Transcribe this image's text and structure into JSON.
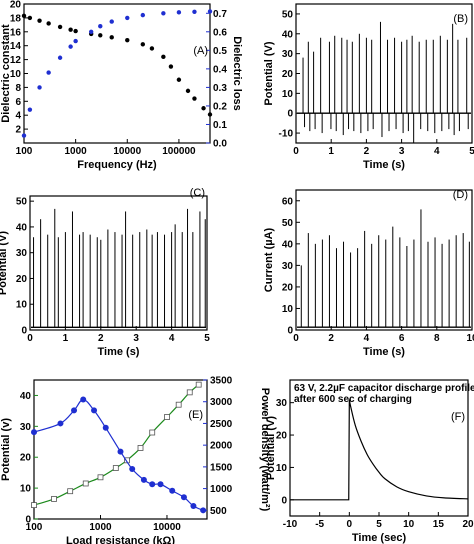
{
  "panels": {
    "A": {
      "label": "(A)",
      "xlabel": "Frequency (Hz)",
      "ylabel_left": "Dielectric constant",
      "ylabel_right": "Dielectric loss",
      "xticks": [
        "100",
        "1000",
        "10000",
        "100000"
      ],
      "yticks_left": [
        "2",
        "4",
        "6",
        "8",
        "10",
        "12",
        "14",
        "16",
        "18",
        "20"
      ],
      "yticks_right": [
        "0.0",
        "0.1",
        "0.2",
        "0.3",
        "0.4",
        "0.5",
        "0.6",
        "0.7"
      ]
    },
    "B": {
      "label": "(B)",
      "xlabel": "Time (s)",
      "ylabel": "Potential (V)",
      "xticks": [
        "0",
        "1",
        "2",
        "3",
        "4",
        "5"
      ],
      "yticks": [
        "-10",
        "0",
        "10",
        "20",
        "30",
        "40",
        "50"
      ]
    },
    "C": {
      "label": "(C)",
      "xlabel": "Time (s)",
      "ylabel": "Potential (V)",
      "xticks": [
        "0",
        "1",
        "2",
        "3",
        "4",
        "5"
      ],
      "yticks": [
        "0",
        "10",
        "20",
        "30",
        "40",
        "50"
      ]
    },
    "D": {
      "label": "(D)",
      "xlabel": "Time (s)",
      "ylabel": "Current (µA)",
      "xticks": [
        "0",
        "2",
        "4",
        "6",
        "8",
        "10"
      ],
      "yticks": [
        "0",
        "10",
        "20",
        "30",
        "40",
        "50",
        "60"
      ]
    },
    "E": {
      "label": "(E)",
      "xlabel": "Load resistance (kΩ)",
      "ylabel_left": "Potential (v)",
      "ylabel_right": "Power density (watt/m²)",
      "xticks": [
        "100",
        "1000",
        "10000"
      ],
      "yticks_left": [
        "0",
        "10",
        "20",
        "30",
        "40"
      ],
      "yticks_right": [
        "500",
        "1000",
        "1500",
        "2000",
        "2500",
        "3000",
        "3500"
      ]
    },
    "F": {
      "label": "(F)",
      "xlabel": "Time (sec)",
      "ylabel": "Potential (V)",
      "annotation_line1": "63 V, 2.2µF capacitor discharge profile",
      "annotation_line2": "after 600 sec of charging",
      "xticks": [
        "-10",
        "-5",
        "0",
        "5",
        "10",
        "15",
        "20"
      ],
      "yticks": [
        "0",
        "10",
        "20",
        "30"
      ]
    }
  },
  "colors": {
    "black": "#000000",
    "blue": "#1f2fd1",
    "green": "#1c8a1c"
  },
  "chart_data": [
    {
      "panel": "A",
      "type": "scatter",
      "x_scale": "log",
      "xlim": [
        100,
        400000
      ],
      "series": [
        {
          "axis": "left",
          "color": "#000000",
          "ylim": [
            0,
            20
          ],
          "x": [
            100,
            130,
            200,
            300,
            500,
            800,
            1000,
            2000,
            3000,
            5000,
            10000,
            20000,
            30000,
            50000,
            70000,
            100000,
            150000,
            200000,
            300000,
            400000
          ],
          "y": [
            18.3,
            18.0,
            17.6,
            17.2,
            16.7,
            16.3,
            16.1,
            15.7,
            15.5,
            15.2,
            14.8,
            14.2,
            13.6,
            12.4,
            11.0,
            9.1,
            7.5,
            6.4,
            5.0,
            4.1
          ]
        },
        {
          "axis": "right",
          "color": "#1f2fd1",
          "ylim": [
            0,
            0.75
          ],
          "x": [
            100,
            130,
            200,
            300,
            500,
            800,
            1000,
            2000,
            3000,
            5000,
            10000,
            20000,
            50000,
            100000,
            200000,
            400000
          ],
          "y": [
            0.04,
            0.18,
            0.3,
            0.38,
            0.46,
            0.52,
            0.55,
            0.6,
            0.63,
            0.655,
            0.675,
            0.69,
            0.7,
            0.705,
            0.708,
            0.71
          ]
        }
      ]
    },
    {
      "panel": "B",
      "type": "line",
      "xlim": [
        0,
        5
      ],
      "ylim": [
        -15,
        55
      ],
      "spike_times": [
        0.2,
        0.35,
        0.5,
        0.7,
        0.95,
        1.1,
        1.3,
        1.45,
        1.6,
        1.8,
        2.0,
        2.15,
        2.4,
        2.6,
        2.8,
        3.0,
        3.15,
        3.3,
        3.5,
        3.7,
        3.9,
        4.1,
        4.3,
        4.45,
        4.6,
        4.85
      ],
      "spike_peaks": [
        28,
        36,
        31,
        38,
        36,
        39,
        38,
        37,
        36,
        40,
        38,
        37,
        46,
        37,
        38,
        36,
        37,
        39,
        36,
        37,
        37,
        39,
        37,
        45,
        37,
        38
      ],
      "spike_dips": [
        -7,
        -9,
        -8,
        -10,
        -8,
        -9,
        -11,
        -8,
        -9,
        -10,
        -9,
        -8,
        -12,
        -9,
        -8,
        -10,
        -9,
        -15,
        -8,
        -9,
        -10,
        -9,
        -8,
        -11,
        -9,
        -8
      ]
    },
    {
      "panel": "C",
      "type": "line",
      "xlim": [
        0,
        5
      ],
      "ylim": [
        0,
        52
      ],
      "spike_times": [
        0.1,
        0.3,
        0.5,
        0.7,
        0.8,
        1.0,
        1.2,
        1.4,
        1.5,
        1.7,
        1.9,
        2.0,
        2.2,
        2.4,
        2.6,
        2.7,
        2.9,
        3.1,
        3.3,
        3.45,
        3.6,
        3.8,
        4.0,
        4.1,
        4.3,
        4.45,
        4.6,
        4.8,
        4.95
      ],
      "spike_peaks": [
        36,
        43,
        37,
        47,
        36,
        38,
        46,
        37,
        38,
        37,
        36,
        35,
        39,
        38,
        37,
        46,
        37,
        38,
        39,
        37,
        38,
        37,
        38,
        41,
        38,
        47,
        38,
        46,
        43
      ]
    },
    {
      "panel": "D",
      "type": "line",
      "xlim": [
        0,
        10
      ],
      "ylim": [
        0,
        65
      ],
      "spike_times": [
        0.3,
        0.7,
        1.1,
        1.5,
        1.9,
        2.3,
        2.7,
        3.1,
        3.5,
        3.9,
        4.3,
        4.7,
        5.1,
        5.5,
        5.9,
        6.3,
        6.7,
        7.1,
        7.5,
        7.9,
        8.3,
        8.7,
        9.1,
        9.5,
        9.85
      ],
      "spike_peaks": [
        30,
        45,
        40,
        42,
        44,
        38,
        41,
        36,
        38,
        46,
        40,
        44,
        42,
        48,
        43,
        39,
        42,
        56,
        41,
        43,
        40,
        42,
        44,
        45,
        41
      ]
    },
    {
      "panel": "E",
      "type": "line",
      "x_scale": "log",
      "xlim": [
        100,
        40000
      ],
      "series": [
        {
          "axis": "left",
          "color": "#1c8a1c",
          "ylim": [
            0,
            45
          ],
          "x": [
            100,
            200,
            350,
            600,
            1000,
            1700,
            2500,
            4000,
            6000,
            10000,
            15000,
            22000,
            30000
          ],
          "y": [
            4.5,
            6.5,
            9,
            11.5,
            13.5,
            16.5,
            19,
            23,
            28,
            33,
            37,
            41,
            43.5
          ]
        },
        {
          "axis": "right",
          "color": "#1f2fd1",
          "ylim": [
            300,
            3500
          ],
          "x": [
            100,
            250,
            400,
            550,
            800,
            1200,
            2000,
            3000,
            4500,
            6000,
            8000,
            12000,
            18000,
            25000,
            35000
          ],
          "y": [
            2300,
            2500,
            2800,
            3050,
            2800,
            2400,
            1850,
            1450,
            1200,
            1100,
            1100,
            950,
            800,
            600,
            500
          ]
        }
      ]
    },
    {
      "panel": "F",
      "type": "line",
      "xlim": [
        -10,
        20
      ],
      "ylim": [
        -5,
        37
      ],
      "series": [
        {
          "name": "",
          "color": "#000000",
          "x": [
            -10,
            -5,
            -0.1,
            0,
            0.2,
            1,
            2,
            3,
            4,
            5,
            6,
            8,
            10,
            13,
            16,
            20
          ],
          "y": [
            0,
            0,
            0,
            31,
            29,
            23,
            18,
            14,
            11,
            8.5,
            6.5,
            4,
            2.5,
            1.2,
            0.6,
            0.3
          ]
        }
      ]
    }
  ]
}
